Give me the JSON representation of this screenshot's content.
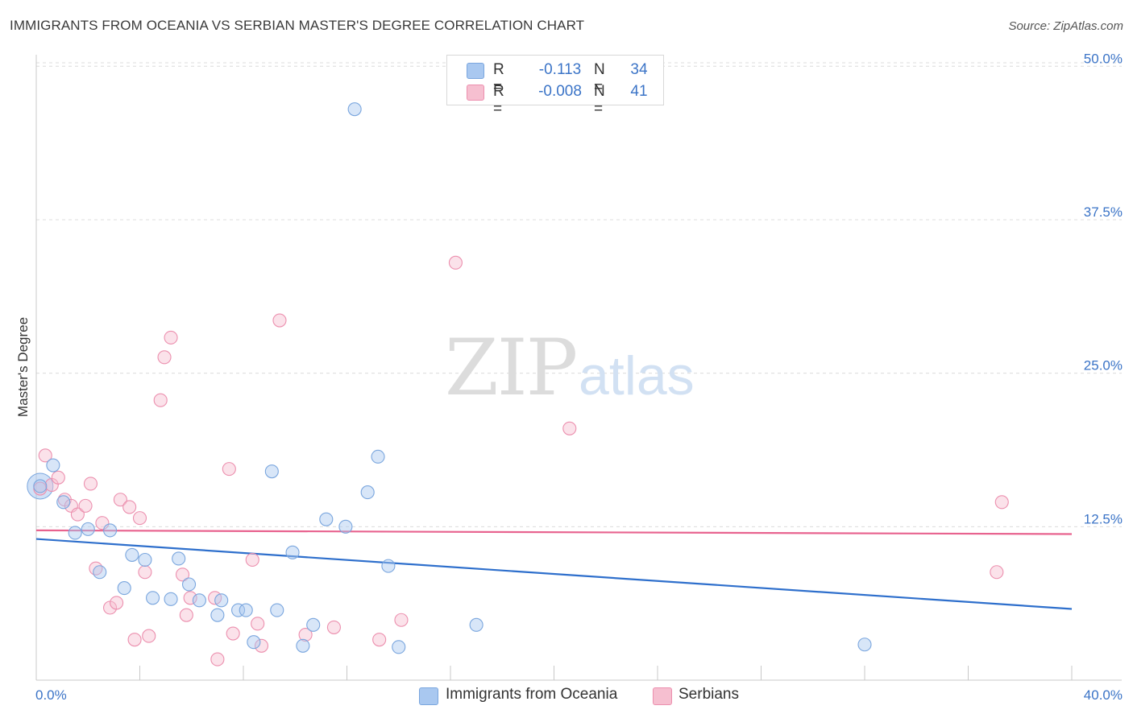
{
  "title": "IMMIGRANTS FROM OCEANIA VS SERBIAN MASTER'S DEGREE CORRELATION CHART",
  "source": "Source: ZipAtlas.com",
  "watermark": {
    "part1": "ZIP",
    "part2": "atlas"
  },
  "legend_stats": [
    {
      "r_label": "R =",
      "r_value": "-0.113",
      "n_label": "N =",
      "n_value": "34"
    },
    {
      "r_label": "R =",
      "r_value": "-0.008",
      "n_label": "N =",
      "n_value": "41"
    }
  ],
  "legend_series": [
    {
      "label": "Immigrants from Oceania"
    },
    {
      "label": "Serbians"
    }
  ],
  "colors": {
    "blue_fill": "#a9c8f0",
    "blue_stroke": "#7aa6de",
    "blue_line": "#2e6fcc",
    "pink_fill": "#f6bfd0",
    "pink_stroke": "#ec8fae",
    "pink_line": "#e8638f",
    "tick_text": "#3b74c7",
    "grid": "#dcdcdc"
  },
  "chart_data": {
    "type": "scatter",
    "title": "IMMIGRANTS FROM OCEANIA VS SERBIAN MASTER'S DEGREE CORRELATION CHART",
    "xlabel": "",
    "ylabel": "Master's Degree",
    "xlim": [
      0,
      40
    ],
    "ylim": [
      0,
      51
    ],
    "x_tick_labels": [
      "0.0%",
      "40.0%"
    ],
    "y_ticks": [
      12.5,
      25.0,
      37.5,
      50.0
    ],
    "y_tick_labels": [
      "12.5%",
      "25.0%",
      "37.5%",
      "50.0%"
    ],
    "legend_position": "top-center",
    "series": [
      {
        "name": "Immigrants from Oceania",
        "points": [
          [
            0.15,
            15.8
          ],
          [
            0.65,
            17.5
          ],
          [
            1.05,
            14.5
          ],
          [
            1.5,
            12.0
          ],
          [
            2.0,
            12.3
          ],
          [
            2.85,
            12.2
          ],
          [
            2.45,
            8.8
          ],
          [
            3.4,
            7.5
          ],
          [
            3.7,
            10.2
          ],
          [
            4.2,
            9.8
          ],
          [
            4.5,
            6.7
          ],
          [
            5.2,
            6.6
          ],
          [
            5.5,
            9.9
          ],
          [
            5.9,
            7.8
          ],
          [
            6.3,
            6.5
          ],
          [
            7.0,
            5.3
          ],
          [
            7.15,
            6.5
          ],
          [
            7.8,
            5.7
          ],
          [
            8.1,
            5.7
          ],
          [
            8.4,
            3.1
          ],
          [
            9.1,
            17.0
          ],
          [
            9.3,
            5.7
          ],
          [
            9.9,
            10.4
          ],
          [
            10.3,
            2.8
          ],
          [
            10.7,
            4.5
          ],
          [
            11.2,
            13.1
          ],
          [
            11.95,
            12.5
          ],
          [
            12.8,
            15.3
          ],
          [
            13.2,
            18.2
          ],
          [
            13.6,
            9.3
          ],
          [
            14.0,
            2.7
          ],
          [
            17.0,
            4.5
          ],
          [
            12.3,
            46.5
          ],
          [
            32.0,
            2.9
          ]
        ],
        "trend": [
          [
            0,
            11.5
          ],
          [
            40,
            5.8
          ]
        ]
      },
      {
        "name": "Serbians",
        "points": [
          [
            0.15,
            15.6
          ],
          [
            0.35,
            18.3
          ],
          [
            0.6,
            15.9
          ],
          [
            0.85,
            16.5
          ],
          [
            1.1,
            14.7
          ],
          [
            1.35,
            14.2
          ],
          [
            1.6,
            13.5
          ],
          [
            1.9,
            14.2
          ],
          [
            2.1,
            16.0
          ],
          [
            2.3,
            9.1
          ],
          [
            2.55,
            12.8
          ],
          [
            2.85,
            5.9
          ],
          [
            3.1,
            6.3
          ],
          [
            3.25,
            14.7
          ],
          [
            3.6,
            14.1
          ],
          [
            3.8,
            3.3
          ],
          [
            4.0,
            13.2
          ],
          [
            4.2,
            8.8
          ],
          [
            4.35,
            3.6
          ],
          [
            4.8,
            22.8
          ],
          [
            4.95,
            26.3
          ],
          [
            5.2,
            27.9
          ],
          [
            5.65,
            8.6
          ],
          [
            5.8,
            5.3
          ],
          [
            5.95,
            6.7
          ],
          [
            6.9,
            6.7
          ],
          [
            7.0,
            1.7
          ],
          [
            7.45,
            17.2
          ],
          [
            7.6,
            3.8
          ],
          [
            8.35,
            9.8
          ],
          [
            8.55,
            4.6
          ],
          [
            8.7,
            2.8
          ],
          [
            9.4,
            29.3
          ],
          [
            10.4,
            3.7
          ],
          [
            11.5,
            4.3
          ],
          [
            13.25,
            3.3
          ],
          [
            14.1,
            4.9
          ],
          [
            16.2,
            34.0
          ],
          [
            20.6,
            20.5
          ],
          [
            37.1,
            8.8
          ],
          [
            37.3,
            14.5
          ]
        ],
        "trend": [
          [
            0,
            12.2
          ],
          [
            40,
            11.9
          ]
        ]
      }
    ]
  }
}
